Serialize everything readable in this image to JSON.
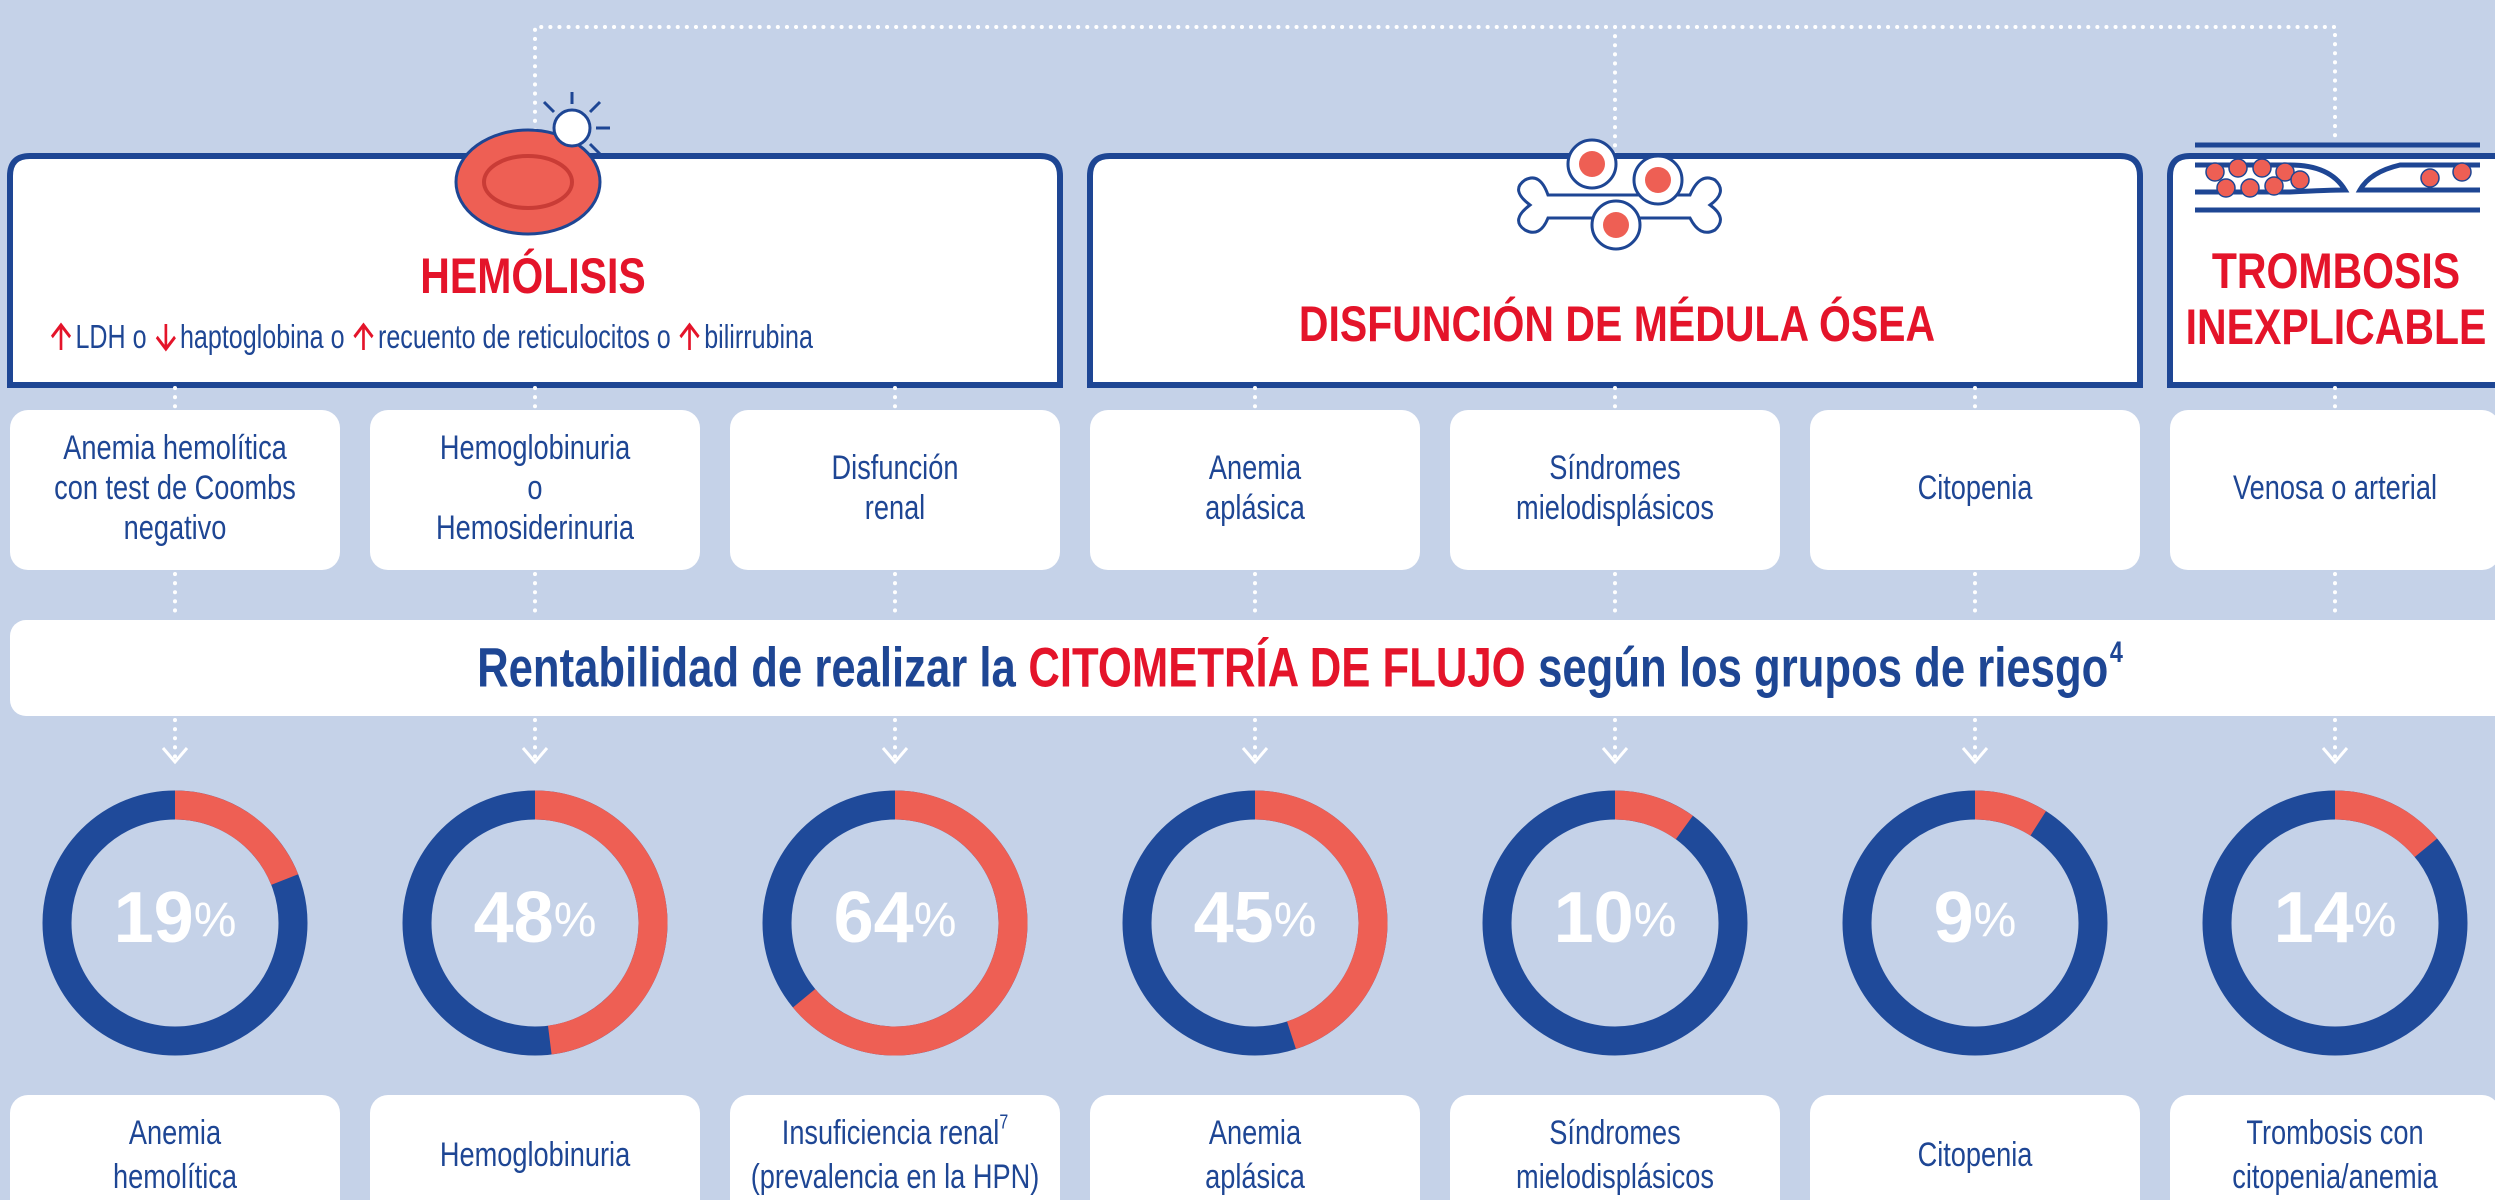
{
  "groups": [
    {
      "title": [
        "HEMÓLISIS"
      ],
      "criteria": [
        "LDH o",
        "haptoglobina o",
        "recuento de reticulocitos o",
        "bilirrubina"
      ]
    },
    {
      "title": [
        "DISFUNCIÓN DE MÉDULA ÓSEA"
      ]
    },
    {
      "title": [
        "TROMBOSIS",
        "INEXPLICABLE"
      ]
    }
  ],
  "conditions": [
    [
      "Anemia hemolítica",
      "con test de Coombs",
      "negativo"
    ],
    [
      "Hemoglobinuria",
      "o",
      "Hemosiderinuria"
    ],
    [
      "Disfunción",
      "renal"
    ],
    [
      "Anemia",
      "aplásica"
    ],
    [
      "Síndromes",
      "mielodisplásicos"
    ],
    [
      "Citopenia"
    ],
    [
      "Venosa o arterial"
    ]
  ],
  "banner": {
    "prefix": "Rentabilidad de realizar la",
    "highlight": "CITOMETRÍA DE FLUJO",
    "suffix": "según los grupos de riesgo",
    "superscript": "4"
  },
  "percent_sign": "%",
  "donuts": [
    {
      "value": 19,
      "label": [
        "Anemia",
        "hemolítica"
      ]
    },
    {
      "value": 48,
      "label": [
        "Hemoglobinuria"
      ]
    },
    {
      "value": 64,
      "label": [
        "Insuficiencia renal",
        "(prevalencia en la HPN)"
      ],
      "label_superscript": "7"
    },
    {
      "value": 45,
      "label": [
        "Anemia",
        "aplásica"
      ]
    },
    {
      "value": 10,
      "label": [
        "Síndromes",
        "mielodisplásicos"
      ]
    },
    {
      "value": 9,
      "label": [
        "Citopenia"
      ]
    },
    {
      "value": 14,
      "label": [
        "Trombosis con",
        "citopenia/anemia"
      ]
    }
  ]
}
